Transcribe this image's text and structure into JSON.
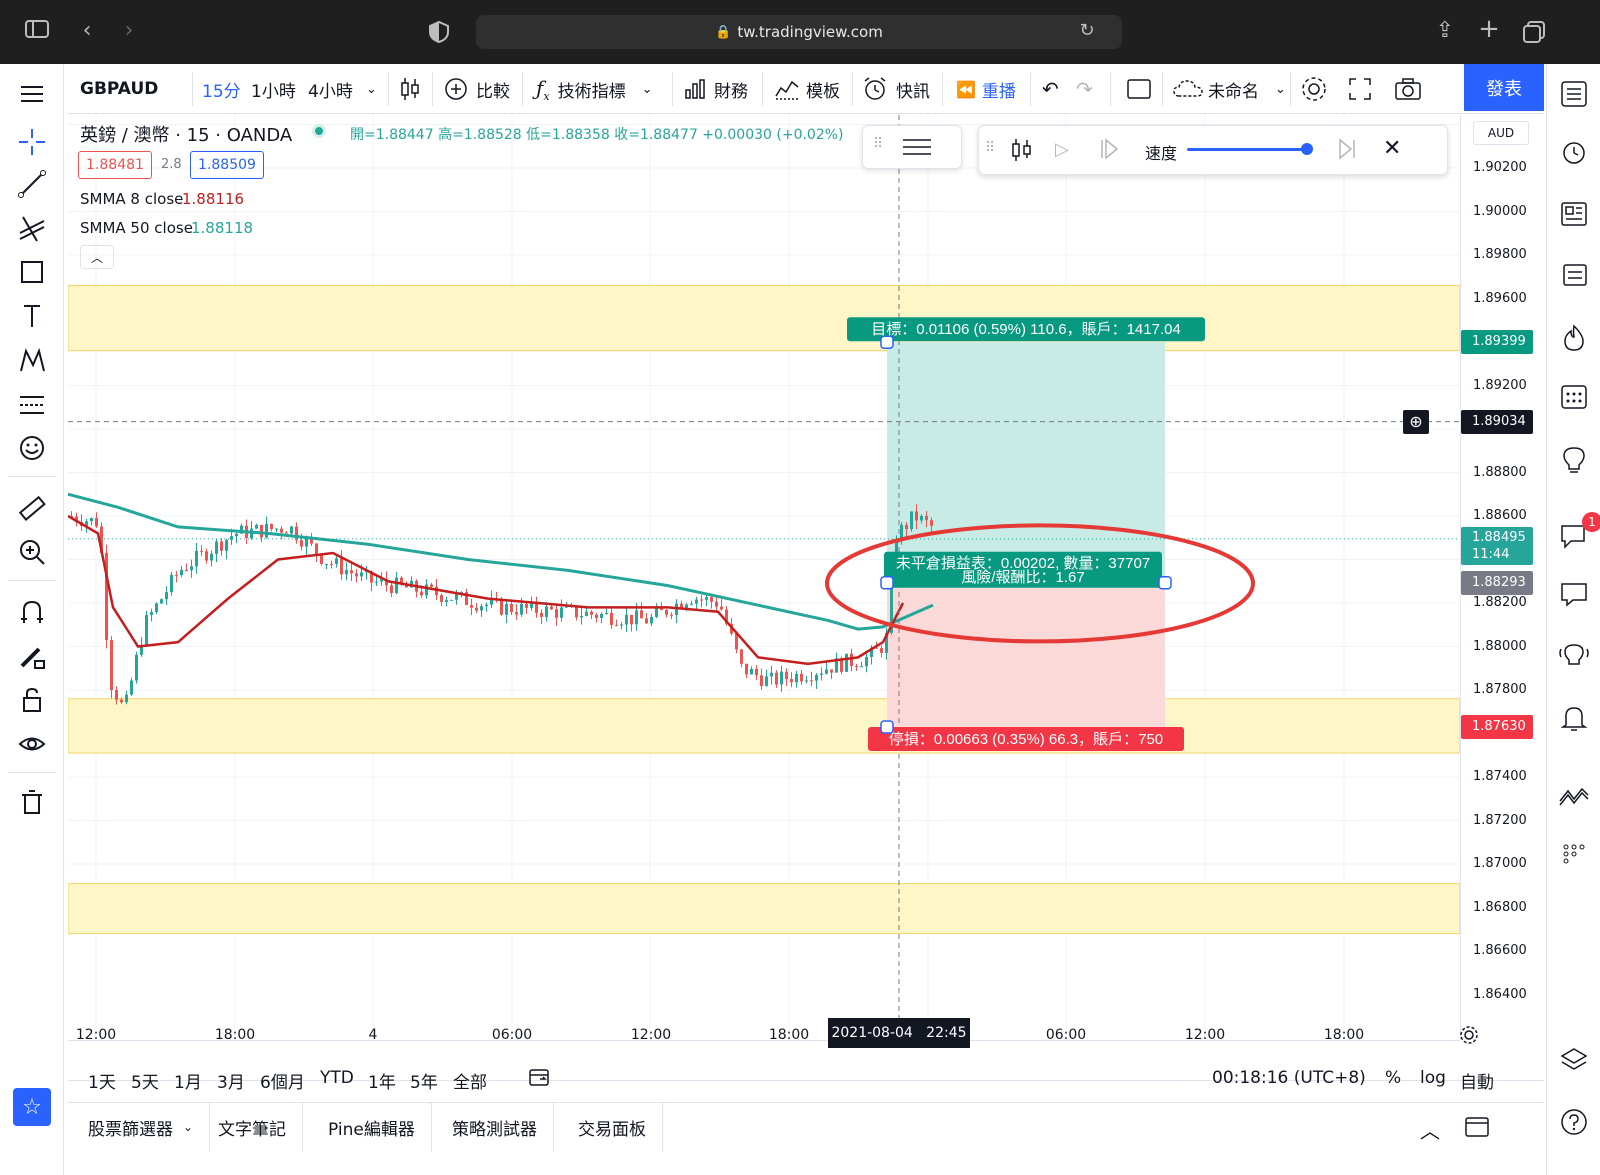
{
  "browser": {
    "url": "tw.tradingview.com"
  },
  "toolbar": {
    "symbol": "GBPAUD",
    "intervals": [
      "15分",
      "1小時",
      "4小時"
    ],
    "compare_label": "比較",
    "indicators_label": "技術指標",
    "financials_label": "財務",
    "templates_label": "模板",
    "alert_label": "快訊",
    "replay_label": "重播",
    "layout_name": "未命名",
    "publish_label": "發表"
  },
  "legend": {
    "title": "英鎊 / 澳幣 · 15 · OANDA",
    "ohlc": "開=1.88447 高=1.88528 低=1.88358 收=1.88477 +0.00030 (+0.02%)",
    "sell_price": "1.88481",
    "spread": "2.8",
    "buy_price": "1.88509",
    "smma8_name": "SMMA 8 close",
    "smma8_value": "1.88116",
    "smma50_name": "SMMA 50 close",
    "smma50_value": "1.88118"
  },
  "replay_panel": {
    "speed_label": "速度"
  },
  "price_axis": {
    "currency": "AUD",
    "ticks": [
      "1.90200",
      "1.90000",
      "1.89800",
      "1.89600",
      "1.89200",
      "1.88800",
      "1.88600",
      "1.88200",
      "1.88000",
      "1.87800",
      "1.87400",
      "1.87200",
      "1.87000",
      "1.86800",
      "1.86600",
      "1.86400"
    ],
    "target_label": "1.89399",
    "crosshair_label": "1.89034",
    "last_price_label": "1.88495",
    "last_price_time": "11:44",
    "entry_label": "1.88293",
    "stop_label": "1.87630"
  },
  "position": {
    "target_text": "目標：0.01106 (0.59%) 110.6，賬戶：1417.04",
    "pnl_text_1": "未平倉損益表：0.00202, 數量：37707",
    "pnl_text_2": "風險/報酬比：1.67",
    "stop_text": "停損：0.00663 (0.35%) 66.3，賬戶：750"
  },
  "time_axis": {
    "ticks": [
      "12:00",
      "18:00",
      "4",
      "06:00",
      "12:00",
      "18:00",
      "06:00",
      "12:00",
      "18:00"
    ],
    "crosshair_label": "2021-08-04   22:45"
  },
  "range_bar": {
    "ranges": [
      "1天",
      "5天",
      "1月",
      "3月",
      "6個月",
      "YTD",
      "1年",
      "5年",
      "全部"
    ],
    "clock": "00:18:16 (UTC+8)",
    "percent": "%",
    "log": "log",
    "auto": "自動"
  },
  "bottom_panel": {
    "tabs": [
      "股票篩選器",
      "文字筆記",
      "Pine編輯器",
      "策略測試器",
      "交易面板"
    ]
  },
  "right_sidebar": {
    "notification_count": "1"
  },
  "colors": {
    "accent": "#2962ff",
    "up": "#26a69a",
    "down": "#ef5350",
    "smma8": "#c41e1e",
    "smma50": "#26a69a",
    "zone": "#fff6c7",
    "target_fill": "#c8ebe6",
    "stop_fill": "#fcd9d9",
    "highlight_circle": "#e53935"
  }
}
